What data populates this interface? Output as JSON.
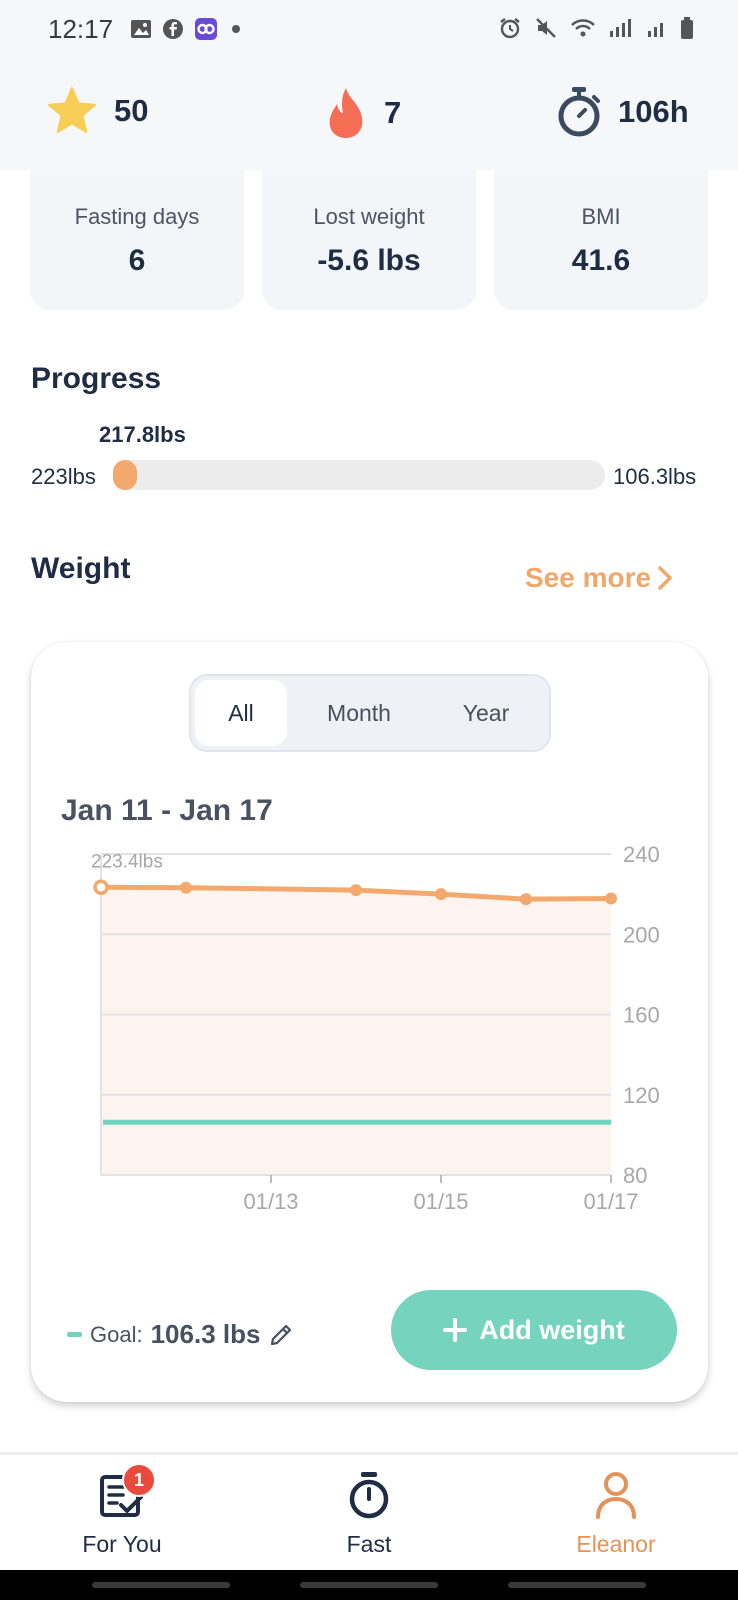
{
  "status_bar": {
    "time": "12:17"
  },
  "stats": {
    "stars": "50",
    "streak": "7",
    "hours": "106h"
  },
  "cards": [
    {
      "label": "Fasting days",
      "value": "6"
    },
    {
      "label": "Lost weight",
      "value": "-5.6 lbs"
    },
    {
      "label": "BMI",
      "value": "41.6"
    }
  ],
  "progress": {
    "title": "Progress",
    "current": "217.8lbs",
    "start": "223lbs",
    "goal": "106.3lbs",
    "fraction": 0.045
  },
  "weight": {
    "title": "Weight",
    "see_more": "See more",
    "tabs": [
      "All",
      "Month",
      "Year"
    ],
    "active_tab": "All",
    "date_range": "Jan 11 - Jan 17",
    "goal_label": "Goal:",
    "goal_value": "106.3 lbs",
    "add_button": "Add weight"
  },
  "chart_data": {
    "type": "line",
    "x": [
      "01/11",
      "01/12",
      "01/14",
      "01/15",
      "01/16",
      "01/17"
    ],
    "series": [
      {
        "values": [
          223.4,
          223.2,
          222.0,
          220.0,
          217.5,
          217.8
        ]
      }
    ],
    "goal_line": 106.3,
    "x_ticks": [
      "01/13",
      "01/15",
      "01/17"
    ],
    "y_ticks": [
      240,
      200,
      160,
      120,
      80
    ],
    "ylim": [
      80,
      240
    ],
    "first_point_label": "223.4lbs",
    "grid": true
  },
  "nav": [
    {
      "label": "For You",
      "badge": "1"
    },
    {
      "label": "Fast"
    },
    {
      "label": "Eleanor"
    }
  ],
  "colors": {
    "accent_orange": "#f3a86e",
    "accent_teal": "#76d3be",
    "text_dark": "#1f2d44",
    "badge_red": "#e84a3c"
  }
}
